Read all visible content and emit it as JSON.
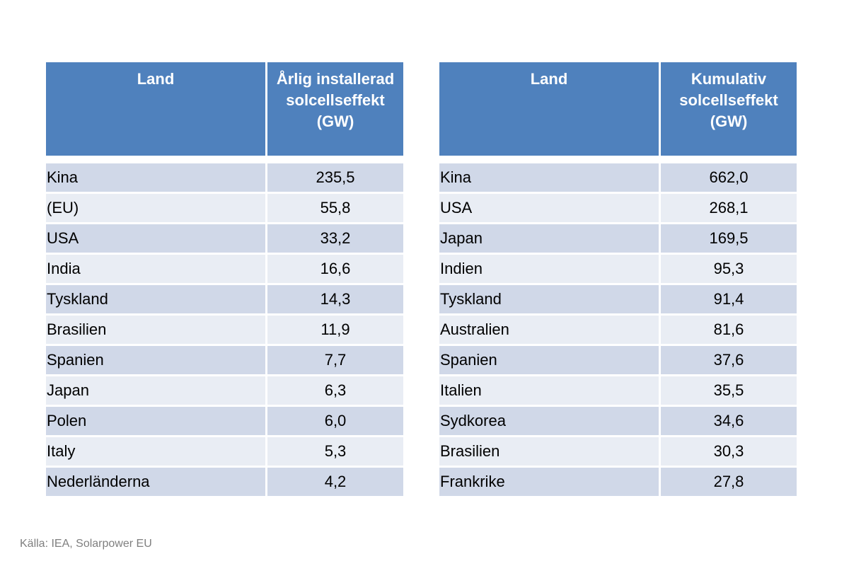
{
  "tables": [
    {
      "headers": [
        "Land",
        "Årlig installerad solcellseffekt (GW)"
      ],
      "rows": [
        [
          "Kina",
          "235,5"
        ],
        [
          "(EU)",
          "55,8"
        ],
        [
          "USA",
          "33,2"
        ],
        [
          "India",
          "16,6"
        ],
        [
          "Tyskland",
          "14,3"
        ],
        [
          "Brasilien",
          "11,9"
        ],
        [
          "Spanien",
          "7,7"
        ],
        [
          "Japan",
          "6,3"
        ],
        [
          "Polen",
          "6,0"
        ],
        [
          "Italy",
          "5,3"
        ],
        [
          "Nederländerna",
          "4,2"
        ]
      ]
    },
    {
      "headers": [
        "Land",
        "Kumulativ solcellseffekt (GW)"
      ],
      "rows": [
        [
          "Kina",
          "662,0"
        ],
        [
          "USA",
          "268,1"
        ],
        [
          "Japan",
          "169,5"
        ],
        [
          "Indien",
          "95,3"
        ],
        [
          "Tyskland",
          "91,4"
        ],
        [
          "Australien",
          "81,6"
        ],
        [
          "Spanien",
          "37,6"
        ],
        [
          "Italien",
          "35,5"
        ],
        [
          "Sydkorea",
          "34,6"
        ],
        [
          "Brasilien",
          "30,3"
        ],
        [
          "Frankrike",
          "27,8"
        ]
      ]
    }
  ],
  "source": "Källa: IEA, Solarpower EU"
}
